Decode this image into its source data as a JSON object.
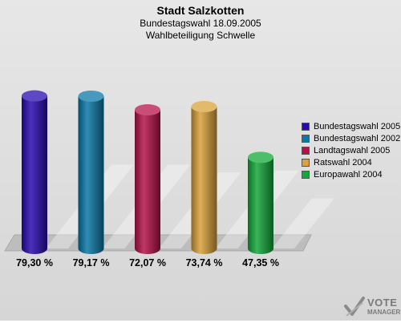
{
  "header": {
    "title": "Stadt Salzkotten",
    "subtitle": "Bundestagswahl 18.09.2005",
    "subtitle2": "Wahlbeteiligung Schwelle"
  },
  "logo": {
    "line1": "VOTE",
    "line2": "MANAGER"
  },
  "chart_data": {
    "type": "bar",
    "categories": [
      "Bundestagswahl 2005",
      "Bundestagswahl 2002",
      "Landtagswahl 2005",
      "Ratswahl 2004",
      "Europawahl 2004"
    ],
    "values": [
      79.3,
      79.17,
      72.07,
      73.74,
      47.35
    ],
    "value_labels": [
      "79,30 %",
      "79,17 %",
      "72,07 %",
      "73,74 %",
      "47,35 %"
    ],
    "colors": [
      "#2a0bb0",
      "#0a78a8",
      "#b5124a",
      "#d9a23b",
      "#14a83a"
    ],
    "title": "Stadt Salzkotten",
    "subtitle": "Bundestagswahl 18.09.2005 / Wahlbeteiligung Schwelle",
    "ylim": [
      0,
      100
    ],
    "grid": false,
    "legend": "right"
  }
}
